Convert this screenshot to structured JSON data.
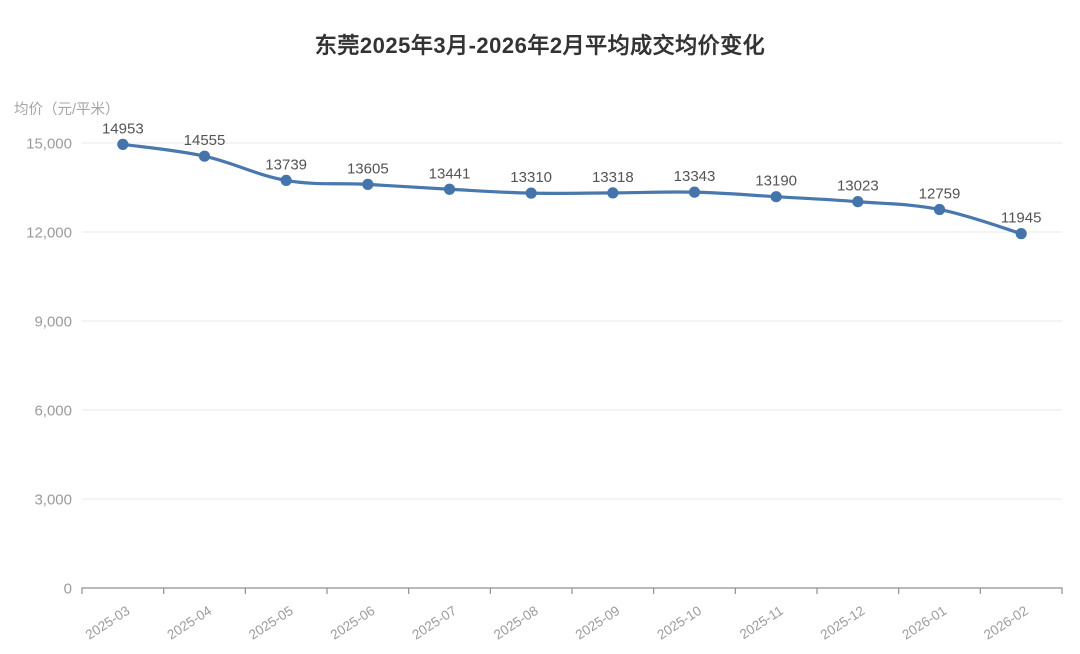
{
  "title": "东莞2025年3月-2026年2月平均成交均价变化",
  "chart_data": {
    "type": "line",
    "title": "东莞2025年3月-2026年2月平均成交均价变化",
    "ylabel": "均价（元/平米）",
    "xlabel": "",
    "categories": [
      "2025-03",
      "2025-04",
      "2025-05",
      "2025-06",
      "2025-07",
      "2025-08",
      "2025-09",
      "2025-10",
      "2025-11",
      "2025-12",
      "2026-01",
      "2026-02"
    ],
    "values": [
      14953,
      14555,
      13739,
      13605,
      13441,
      13310,
      13318,
      13343,
      13190,
      13023,
      12759,
      11945
    ],
    "data_labels": [
      "14953",
      "14555",
      "13739",
      "13605",
      "13441",
      "13310",
      "13318",
      "13343",
      "13190",
      "13023",
      "12759",
      "11945"
    ],
    "ylim": [
      0,
      15000
    ],
    "yticks": [
      0,
      3000,
      6000,
      9000,
      12000,
      15000
    ],
    "ytick_labels": [
      "0",
      "3,000",
      "6,000",
      "9,000",
      "12,000",
      "15,000"
    ],
    "grid": true,
    "smooth": true,
    "legend_position": "none",
    "colors": {
      "line": "#4878ad",
      "point": "#4474aa",
      "data_label": "#545454",
      "axis_label": "#9b9b9b",
      "axis_line": "#909090",
      "gridline": "#e9e9e9",
      "title": "#333333"
    }
  }
}
